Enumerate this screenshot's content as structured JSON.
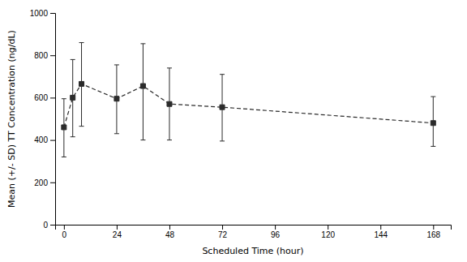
{
  "chart_data": {
    "type": "line",
    "x": [
      0,
      4,
      8,
      24,
      36,
      48,
      72,
      168
    ],
    "series": [
      {
        "color": "#2b2b2b",
        "marker": "square",
        "line_style": "dashed",
        "values": [
          460,
          600,
          665,
          595,
          655,
          570,
          555,
          480
        ],
        "upper": [
          595,
          780,
          860,
          755,
          855,
          740,
          710,
          605
        ],
        "lower": [
          320,
          415,
          465,
          430,
          400,
          400,
          395,
          370
        ]
      }
    ],
    "xlabel": "Scheduled Time (hour)",
    "ylabel": "Mean (+/- SD) TT Concentration (ng/dL)",
    "xlim": [
      -4,
      176
    ],
    "ylim": [
      0,
      1000
    ],
    "xticks": [
      0,
      24,
      48,
      72,
      96,
      120,
      144,
      168
    ],
    "yticks": [
      0,
      200,
      400,
      600,
      800,
      1000
    ],
    "grid": false
  }
}
